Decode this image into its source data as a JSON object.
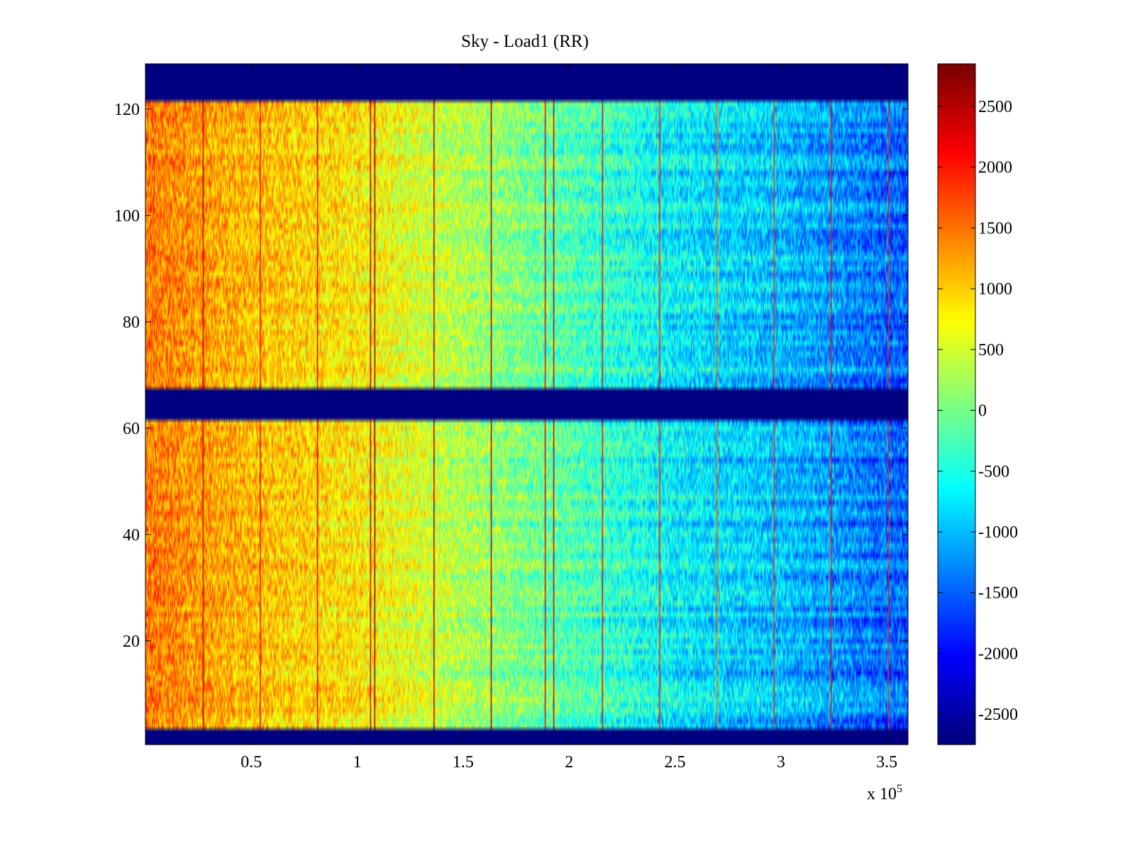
{
  "chart_data": {
    "type": "heatmap",
    "title": "Sky - Load1 (RR)",
    "xlabel": "",
    "ylabel": "",
    "x_multiplier_label": "x 10",
    "x_multiplier_exponent": "5",
    "xlim": [
      0,
      3.6
    ],
    "ylim": [
      0.5,
      128.5
    ],
    "x_ticks": [
      0.5,
      1,
      1.5,
      2,
      2.5,
      3,
      3.5
    ],
    "x_tick_labels": [
      "0.5",
      "1",
      "1.5",
      "2",
      "2.5",
      "3",
      "3.5"
    ],
    "y_ticks": [
      20,
      40,
      60,
      80,
      100,
      120
    ],
    "y_tick_labels": [
      "20",
      "40",
      "60",
      "80",
      "100",
      "120"
    ],
    "colormap": "jet",
    "clim": [
      -2750,
      2850
    ],
    "colorbar_ticks": [
      2500,
      2000,
      1500,
      1000,
      500,
      0,
      -500,
      -1000,
      -1500,
      -2000,
      -2500
    ],
    "colorbar_tick_labels": [
      "2500",
      "2000",
      "1500",
      "1000",
      "500",
      "0",
      "-500",
      "-1000",
      "-1500",
      "-2000",
      "-2500"
    ],
    "masked_row_ranges": [
      [
        1,
        3
      ],
      [
        62,
        67
      ],
      [
        122,
        128
      ]
    ],
    "masked_value": -2750,
    "trend": {
      "x_points": [
        0,
        0.5,
        1.0,
        1.5,
        2.0,
        2.5,
        3.0,
        3.6
      ],
      "values": [
        1500,
        1100,
        850,
        300,
        -200,
        -700,
        -1000,
        -1550
      ]
    },
    "vertical_lines": [
      {
        "x": 0.27,
        "value": 2500
      },
      {
        "x": 0.54,
        "value": 2200
      },
      {
        "x": 0.81,
        "value": 2300
      },
      {
        "x": 1.06,
        "value": 2500
      },
      {
        "x": 1.08,
        "value": 2700
      },
      {
        "x": 1.36,
        "value": 2600
      },
      {
        "x": 1.63,
        "value": 2600
      },
      {
        "x": 1.89,
        "value": 2300
      },
      {
        "x": 1.93,
        "value": 2400
      },
      {
        "x": 2.16,
        "value": 2200
      },
      {
        "x": 2.43,
        "value": 2000
      },
      {
        "x": 2.7,
        "value": 1600
      },
      {
        "x": 2.97,
        "value": 1900
      },
      {
        "x": 3.24,
        "value": 2100
      },
      {
        "x": 3.51,
        "value": 2000
      }
    ]
  }
}
